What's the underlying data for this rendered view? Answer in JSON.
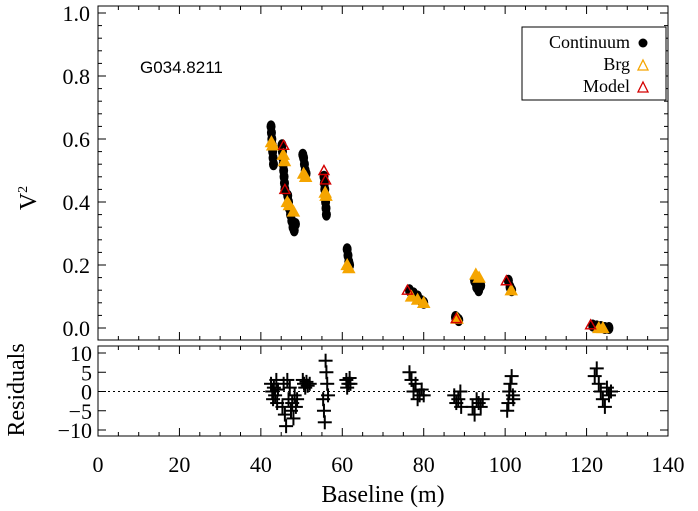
{
  "colors": {
    "continuum": "#000000",
    "brg": "#f5a500",
    "model": "#d40000",
    "axis": "#000000"
  },
  "chart_data": [
    {
      "type": "scatter",
      "panel": "top",
      "title": "",
      "annotation": "G034.8211",
      "xlabel": "",
      "ylabel": "V",
      "ylabel_superscript": "2",
      "xlim": [
        0,
        140
      ],
      "ylim": [
        -0.02,
        1.0
      ],
      "yticks": [
        "0.0",
        "0.2",
        "0.4",
        "0.6",
        "0.8",
        "1.0"
      ],
      "legend_position": "top-right",
      "series": [
        {
          "name": "Continuum",
          "marker": "filled-circle",
          "points": [
            [
              42.5,
              0.64
            ],
            [
              42.6,
              0.62
            ],
            [
              42.7,
              0.6
            ],
            [
              42.8,
              0.58
            ],
            [
              42.9,
              0.56
            ],
            [
              43.0,
              0.54
            ],
            [
              43.1,
              0.52
            ],
            [
              45.2,
              0.58
            ],
            [
              45.3,
              0.56
            ],
            [
              45.4,
              0.54
            ],
            [
              45.5,
              0.52
            ],
            [
              45.6,
              0.5
            ],
            [
              45.7,
              0.48
            ],
            [
              45.8,
              0.46
            ],
            [
              45.9,
              0.44
            ],
            [
              46.6,
              0.42
            ],
            [
              46.8,
              0.4
            ],
            [
              47.0,
              0.38
            ],
            [
              47.3,
              0.36
            ],
            [
              47.6,
              0.34
            ],
            [
              47.9,
              0.32
            ],
            [
              48.2,
              0.31
            ],
            [
              48.5,
              0.33
            ],
            [
              50.3,
              0.55
            ],
            [
              50.5,
              0.54
            ],
            [
              50.7,
              0.52
            ],
            [
              50.9,
              0.5
            ],
            [
              51.1,
              0.49
            ],
            [
              55.5,
              0.48
            ],
            [
              55.6,
              0.46
            ],
            [
              55.7,
              0.44
            ],
            [
              55.8,
              0.42
            ],
            [
              55.9,
              0.4
            ],
            [
              56.0,
              0.38
            ],
            [
              56.1,
              0.36
            ],
            [
              61.2,
              0.25
            ],
            [
              61.4,
              0.23
            ],
            [
              61.6,
              0.21
            ],
            [
              61.8,
              0.2
            ],
            [
              76.5,
              0.12
            ],
            [
              77.5,
              0.11
            ],
            [
              78.5,
              0.1
            ],
            [
              79.5,
              0.085
            ],
            [
              80.0,
              0.08
            ],
            [
              87.8,
              0.035
            ],
            [
              88.2,
              0.03
            ],
            [
              88.6,
              0.025
            ],
            [
              92.5,
              0.15
            ],
            [
              93.0,
              0.13
            ],
            [
              93.5,
              0.12
            ],
            [
              94.0,
              0.135
            ],
            [
              100.8,
              0.15
            ],
            [
              101.2,
              0.13
            ],
            [
              101.6,
              0.12
            ],
            [
              121.5,
              0.008
            ],
            [
              122.5,
              0.005
            ],
            [
              123.5,
              0.003
            ],
            [
              124.5,
              0.0
            ],
            [
              125.5,
              0.0
            ]
          ]
        },
        {
          "name": "Brg",
          "marker": "open-triangle",
          "points": [
            [
              42.6,
              0.59
            ],
            [
              42.9,
              0.58
            ],
            [
              45.5,
              0.55
            ],
            [
              45.8,
              0.53
            ],
            [
              46.5,
              0.4
            ],
            [
              47.0,
              0.39
            ],
            [
              48.0,
              0.37
            ],
            [
              50.5,
              0.49
            ],
            [
              51.0,
              0.48
            ],
            [
              55.8,
              0.43
            ],
            [
              56.0,
              0.42
            ],
            [
              61.2,
              0.2
            ],
            [
              61.6,
              0.19
            ],
            [
              77.0,
              0.1
            ],
            [
              78.5,
              0.09
            ],
            [
              80.0,
              0.08
            ],
            [
              88.2,
              0.03
            ],
            [
              92.8,
              0.17
            ],
            [
              93.6,
              0.16
            ],
            [
              101.5,
              0.12
            ],
            [
              123.0,
              0.0
            ],
            [
              124.0,
              0.0
            ]
          ]
        },
        {
          "name": "Model",
          "marker": "open-triangle",
          "points": [
            [
              45.6,
              0.58
            ],
            [
              45.9,
              0.44
            ],
            [
              55.5,
              0.5
            ],
            [
              55.9,
              0.47
            ],
            [
              76.0,
              0.12
            ],
            [
              88.0,
              0.03
            ],
            [
              100.3,
              0.15
            ],
            [
              121.0,
              0.01
            ]
          ]
        }
      ]
    },
    {
      "type": "scatter",
      "panel": "bottom",
      "title": "",
      "xlabel": "Baseline (m)",
      "ylabel": "Residuals",
      "xlim": [
        0,
        140
      ],
      "ylim": [
        -12,
        12
      ],
      "xticks": [
        "0",
        "20",
        "40",
        "60",
        "80",
        "100",
        "120",
        "140"
      ],
      "yticks": [
        "10",
        "5",
        "0",
        "−5",
        "−10"
      ],
      "reference_line": 0,
      "series": [
        {
          "name": "",
          "marker": "plus",
          "points": [
            [
              42.5,
              2
            ],
            [
              42.8,
              0
            ],
            [
              43.0,
              -2
            ],
            [
              43.2,
              1
            ],
            [
              43.5,
              -1
            ],
            [
              43.8,
              3
            ],
            [
              44.0,
              -3
            ],
            [
              44.2,
              0.5
            ],
            [
              45.3,
              -4
            ],
            [
              45.6,
              2
            ],
            [
              45.9,
              -6
            ],
            [
              46.2,
              -9
            ],
            [
              46.5,
              3
            ],
            [
              46.8,
              -2
            ],
            [
              47.1,
              1
            ],
            [
              47.4,
              -5
            ],
            [
              47.7,
              -3
            ],
            [
              48.0,
              -7
            ],
            [
              48.3,
              -1
            ],
            [
              48.6,
              -4
            ],
            [
              48.9,
              -2
            ],
            [
              50.3,
              3
            ],
            [
              50.6,
              2
            ],
            [
              50.9,
              1
            ],
            [
              51.2,
              2.5
            ],
            [
              51.5,
              1.5
            ],
            [
              52.0,
              2
            ],
            [
              55.3,
              -2
            ],
            [
              55.5,
              -5
            ],
            [
              55.7,
              -8
            ],
            [
              55.9,
              8
            ],
            [
              56.1,
              5
            ],
            [
              56.3,
              2
            ],
            [
              56.5,
              -1
            ],
            [
              61.0,
              3
            ],
            [
              61.2,
              1
            ],
            [
              61.5,
              2
            ],
            [
              61.8,
              3.5
            ],
            [
              62.0,
              2
            ],
            [
              76.5,
              5
            ],
            [
              77.0,
              3
            ],
            [
              77.5,
              0
            ],
            [
              78.0,
              2
            ],
            [
              78.5,
              -2
            ],
            [
              79.0,
              -1
            ],
            [
              79.5,
              0.5
            ],
            [
              80.0,
              -1
            ],
            [
              87.5,
              -1
            ],
            [
              88.0,
              -3
            ],
            [
              88.5,
              -2
            ],
            [
              89.0,
              0
            ],
            [
              89.2,
              -4
            ],
            [
              92.0,
              -4
            ],
            [
              92.5,
              -6
            ],
            [
              93.0,
              -2
            ],
            [
              93.5,
              -3
            ],
            [
              94.0,
              -4
            ],
            [
              94.5,
              -2
            ],
            [
              100.5,
              -5
            ],
            [
              100.8,
              -3
            ],
            [
              101.0,
              0
            ],
            [
              101.3,
              2
            ],
            [
              101.6,
              4
            ],
            [
              101.9,
              -1
            ],
            [
              102.0,
              -2
            ],
            [
              122.0,
              4
            ],
            [
              122.5,
              6
            ],
            [
              123.0,
              2
            ],
            [
              123.5,
              0
            ],
            [
              124.0,
              -2
            ],
            [
              124.5,
              -4
            ],
            [
              125.0,
              1
            ],
            [
              125.5,
              -1
            ],
            [
              126.0,
              0
            ]
          ]
        }
      ]
    }
  ]
}
